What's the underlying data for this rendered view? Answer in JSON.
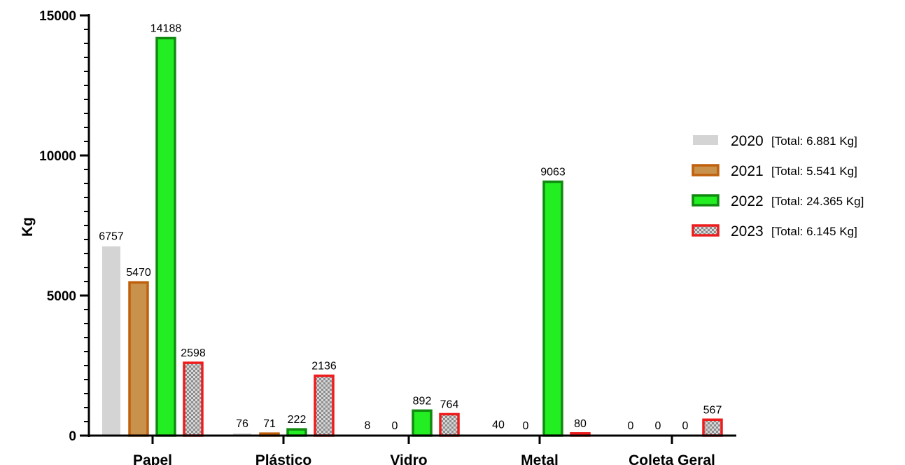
{
  "chart_data": {
    "type": "bar",
    "title": "",
    "xlabel": "",
    "ylabel": "Kg",
    "ylim": [
      0,
      15000
    ],
    "yticks": [
      "0",
      "5000",
      "10000",
      "15000"
    ],
    "categories": [
      "Papel",
      "Plástico",
      "Vidro",
      "Metal",
      "Coleta Geral"
    ],
    "series": [
      {
        "name": "2020",
        "total_label": "[Total: 6.881 Kg]",
        "values": [
          6757,
          76,
          8,
          40,
          0
        ],
        "color": "#d4d4d4",
        "stroke": "#d4d4d4",
        "pattern": "solid"
      },
      {
        "name": "2021",
        "total_label": "[Total: 5.541 Kg]",
        "values": [
          5470,
          71,
          0,
          0,
          0
        ],
        "color": "#c8914c",
        "stroke": "#c0600c",
        "pattern": "solid"
      },
      {
        "name": "2022",
        "total_label": "[Total: 24.365 Kg]",
        "values": [
          14188,
          222,
          892,
          9063,
          0
        ],
        "color": "#22ee22",
        "stroke": "#128a12",
        "pattern": "solid"
      },
      {
        "name": "2023",
        "total_label": "[Total: 6.145 Kg]",
        "values": [
          2598,
          2136,
          764,
          80,
          567
        ],
        "color": "#ee1c1c",
        "stroke": "#ee1c1c",
        "pattern": "checker"
      }
    ],
    "legend_position": "right",
    "grid": false
  }
}
